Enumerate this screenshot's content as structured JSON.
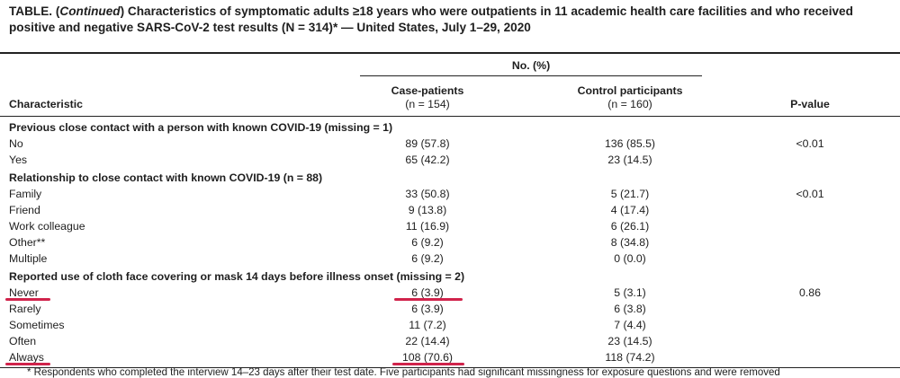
{
  "title": {
    "prefix": "TABLE. (",
    "italic": "Continued",
    "rest": ") Characteristics of symptomatic adults ≥18 years who were outpatients in 11 academic health care facilities and who received",
    "line2": "positive and negative SARS-CoV-2 test results (N = 314)* — United States, July 1–29, 2020"
  },
  "header": {
    "no_pct": "No. (%)",
    "characteristic": "Characteristic",
    "case_label": "Case-patients",
    "case_n": "(n = 154)",
    "control_label": "Control participants",
    "control_n": "(n = 160)",
    "pvalue": "P-value"
  },
  "sections": [
    {
      "title": "Previous close contact with a person with known COVID-19 (missing = 1)",
      "rows": [
        {
          "label": "No",
          "case": "89 (57.8)",
          "control": "136 (85.5)",
          "p": "<0.01"
        },
        {
          "label": "Yes",
          "case": "65 (42.2)",
          "control": "23 (14.5)",
          "p": ""
        }
      ]
    },
    {
      "title": "Relationship to close contact with known COVID-19 (n = 88)",
      "rows": [
        {
          "label": "Family",
          "case": "33 (50.8)",
          "control": "5 (21.7)",
          "p": "<0.01"
        },
        {
          "label": "Friend",
          "case": "9 (13.8)",
          "control": "4 (17.4)",
          "p": ""
        },
        {
          "label": "Work colleague",
          "case": "11 (16.9)",
          "control": "6 (26.1)",
          "p": ""
        },
        {
          "label": "Other**",
          "case": "6 (9.2)",
          "control": "8 (34.8)",
          "p": ""
        },
        {
          "label": "Multiple",
          "case": "6 (9.2)",
          "control": "0 (0.0)",
          "p": ""
        }
      ]
    },
    {
      "title": "Reported use of cloth face covering or mask 14 days before illness onset (missing = 2)",
      "rows": [
        {
          "label": "Never",
          "case": "6 (3.9)",
          "control": "5 (3.1)",
          "p": "0.86"
        },
        {
          "label": "Rarely",
          "case": "6 (3.9)",
          "control": "6 (3.8)",
          "p": ""
        },
        {
          "label": "Sometimes",
          "case": "11 (7.2)",
          "control": "7 (4.4)",
          "p": ""
        },
        {
          "label": "Often",
          "case": "22 (14.4)",
          "control": "23 (14.5)",
          "p": ""
        },
        {
          "label": "Always",
          "case": "108 (70.6)",
          "control": "118 (74.2)",
          "p": ""
        }
      ]
    }
  ],
  "footnote": "* Respondents who completed the interview 14–23 days after their test date. Five participants had significant missingness for exposure questions and were removed",
  "annotation_color": "#d0234b"
}
